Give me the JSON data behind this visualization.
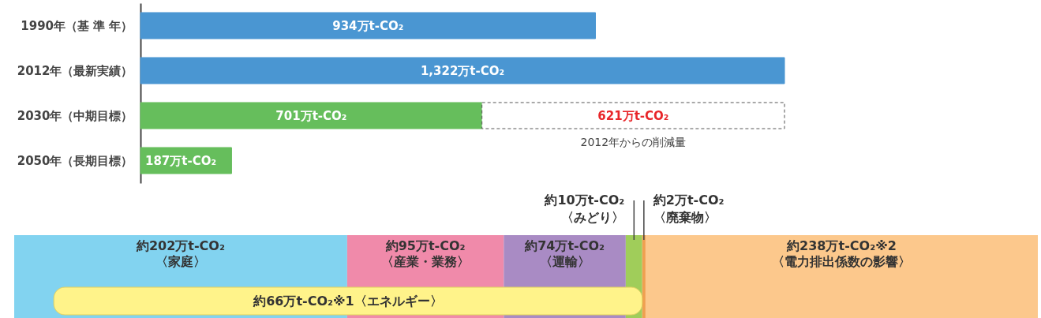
{
  "chart_data": [
    {
      "type": "bar",
      "orientation": "horizontal",
      "stacked": true,
      "grid": false,
      "categories": [
        "1990年（基 準 年）",
        "2012年（最新実績）",
        "2030年（中期目標）",
        "2050年（長期目標）"
      ],
      "series": [
        {
          "colors": [
            "#4a96d2",
            "#4a96d2",
            "#66be5c",
            "#66be5c"
          ],
          "values": [
            934,
            1322,
            701,
            187
          ],
          "value_labels": [
            "934万t-CO₂",
            "1,322万t-CO₂",
            "701万t-CO₂",
            "187万t-CO₂"
          ]
        },
        {
          "color": "#ffffff",
          "line_style": "dashed",
          "values": [
            null,
            null,
            621,
            null
          ],
          "value_labels": [
            null,
            null,
            "621万t-CO₂",
            null
          ]
        }
      ],
      "annotations": [
        "2012年からの削減量"
      ]
    },
    {
      "type": "bar",
      "orientation": "horizontal",
      "stacked": true,
      "grid": false,
      "categories": [
        null
      ],
      "series": [
        {
          "name": "〈家庭〉",
          "color": "#82d3f0",
          "values": [
            202
          ],
          "value_labels": [
            "約202万t-CO₂"
          ]
        },
        {
          "name": "〈産業・業務〉",
          "color": "#f08aaa",
          "values": [
            95
          ],
          "value_labels": [
            "約95万t-CO₂"
          ]
        },
        {
          "name": "〈運輸〉",
          "color": "#a98bc4",
          "values": [
            74
          ],
          "value_labels": [
            "約74万t-CO₂"
          ]
        },
        {
          "name": "〈みどり〉",
          "color": "#a0cd5a",
          "values": [
            10
          ],
          "value_labels": [
            "約10万t-CO₂"
          ]
        },
        {
          "name": "〈廃棄物〉",
          "color": "#f0a050",
          "values": [
            2
          ],
          "value_labels": [
            "約2万t-CO₂"
          ]
        },
        {
          "name": "〈電力排出係数の影響〉",
          "color": "#fcc88c",
          "values": [
            238
          ],
          "value_labels": [
            "約238万t-CO₂※2"
          ]
        }
      ],
      "bands": [
        {
          "axis": "x",
          "from": 24,
          "to": 381,
          "label": "約66万t-CO₂※1〈エネルギー〉",
          "color": "#fff38a"
        }
      ]
    }
  ]
}
